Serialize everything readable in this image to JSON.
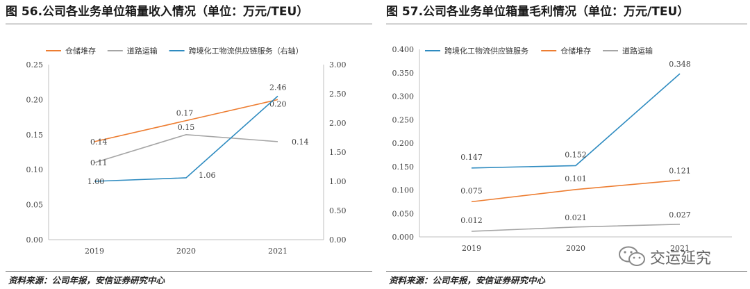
{
  "left": {
    "title": "图 56.公司各业务单位箱量收入情况（单位：万元/TEU）",
    "source": "资料来源：公司年报，安信证券研究中心"
  },
  "right": {
    "title": "图 57.公司各业务单位箱量毛利情况（单位：万元/TEU）",
    "source": "资料来源：公司年报，安信证券研究中心"
  },
  "watermark": "交运延究",
  "colors": {
    "orange": "#ED7D31",
    "gray": "#A5A5A5",
    "blue": "#2E8BC0",
    "axis": "#bfbfbf",
    "text": "#404040"
  },
  "chart_data": [
    {
      "type": "line",
      "categories": [
        "2019",
        "2020",
        "2021"
      ],
      "ylim": [
        0,
        0.25
      ],
      "y_ticks": [
        "0.00",
        "0.05",
        "0.10",
        "0.15",
        "0.20",
        "0.25"
      ],
      "y2lim": [
        0,
        3
      ],
      "y2_ticks": [
        "0.00",
        "0.50",
        "1.00",
        "1.50",
        "2.00",
        "2.50",
        "3.00"
      ],
      "legend_position": "top",
      "grid": false,
      "series": [
        {
          "name": "仓储堆存",
          "color": "orange",
          "axis": "left",
          "values": [
            0.14,
            0.17,
            0.2
          ],
          "labels": [
            "0.14",
            "0.17",
            "0.20"
          ]
        },
        {
          "name": "道路运输",
          "color": "gray",
          "axis": "left",
          "values": [
            0.11,
            0.15,
            0.14
          ],
          "labels": [
            "0.11",
            "0.15",
            "0.14"
          ]
        },
        {
          "name": "跨境化工物流供应链服务（右轴）",
          "color": "blue",
          "axis": "right",
          "values": [
            1.0,
            1.06,
            2.46
          ],
          "labels": [
            "1.00",
            "1.06",
            "2.46"
          ]
        }
      ]
    },
    {
      "type": "line",
      "categories": [
        "2019",
        "2020",
        "2021"
      ],
      "ylim": [
        0,
        0.4
      ],
      "y_ticks": [
        "0.000",
        "0.050",
        "0.100",
        "0.150",
        "0.200",
        "0.250",
        "0.300",
        "0.350",
        "0.400"
      ],
      "legend_position": "top",
      "grid": false,
      "series": [
        {
          "name": "跨境化工物流供应链服务",
          "color": "blue",
          "values": [
            0.147,
            0.152,
            0.348
          ],
          "labels": [
            "0.147",
            "0.152",
            "0.348"
          ]
        },
        {
          "name": "仓储堆存",
          "color": "orange",
          "values": [
            0.075,
            0.101,
            0.121
          ],
          "labels": [
            "0.075",
            "0.101",
            "0.121"
          ]
        },
        {
          "name": "道路运输",
          "color": "gray",
          "values": [
            0.012,
            0.021,
            0.027
          ],
          "labels": [
            "0.012",
            "0.021",
            "0.027"
          ]
        }
      ]
    }
  ]
}
